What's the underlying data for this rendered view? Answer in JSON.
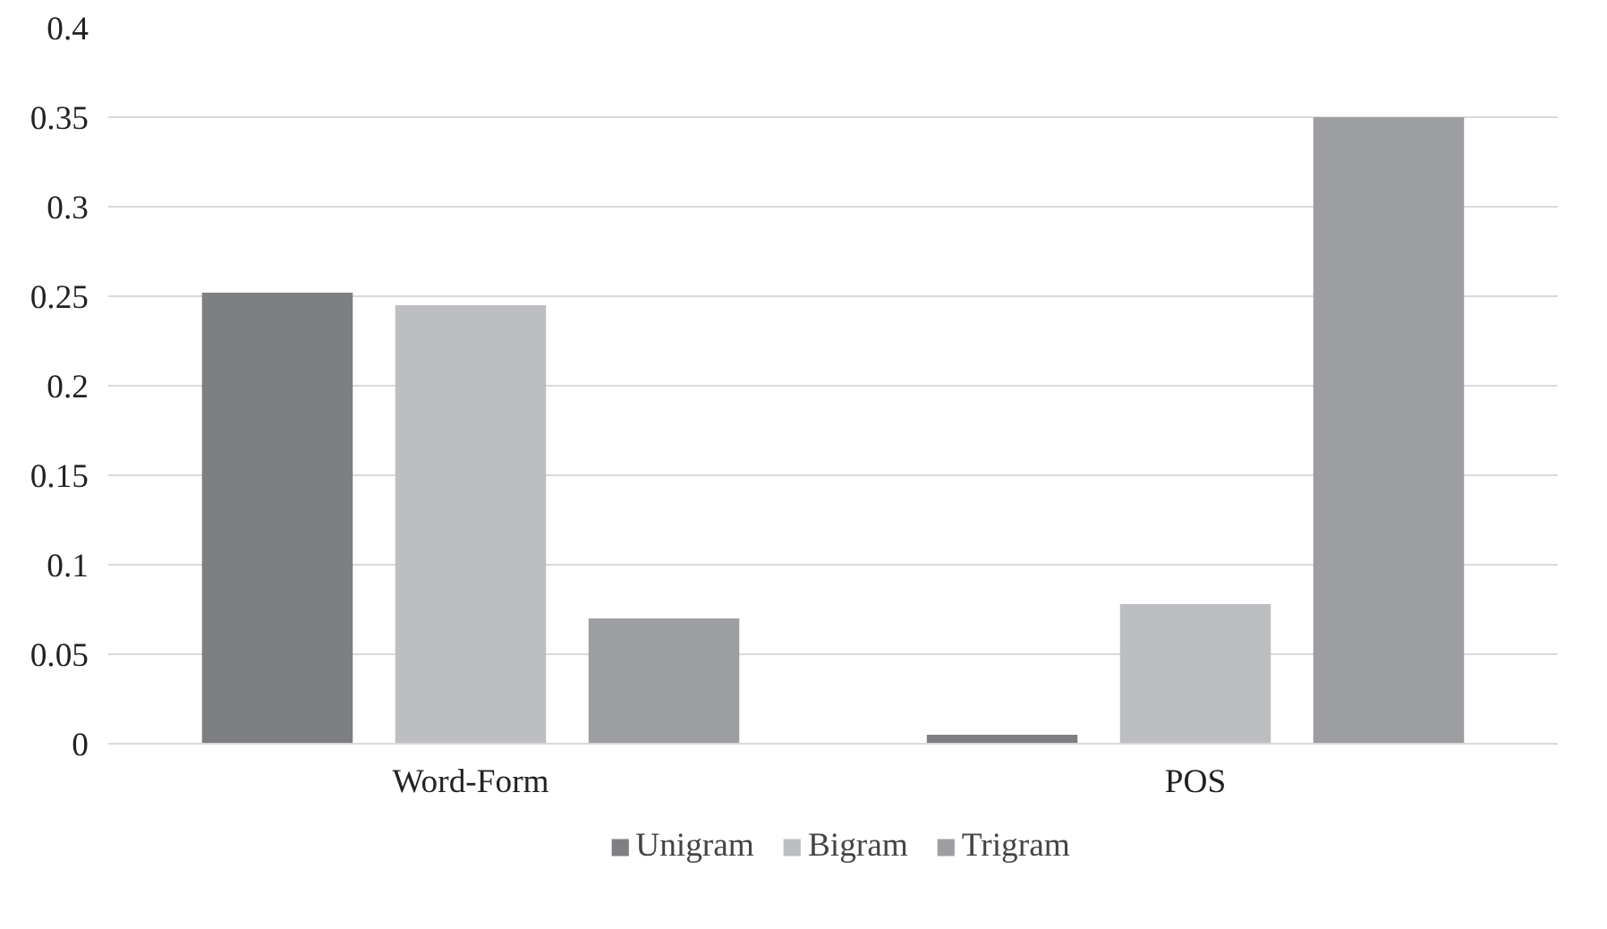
{
  "chart_data": {
    "type": "bar",
    "categories": [
      "Word-Form",
      "POS"
    ],
    "series": [
      {
        "name": "Unigram",
        "color": "#7e7f83",
        "values": [
          0.252,
          0.005
        ]
      },
      {
        "name": "Bigram",
        "color": "#bdbec1",
        "values": [
          0.245,
          0.078
        ]
      },
      {
        "name": "Trigram",
        "color": "#9d9ea1",
        "values": [
          0.07,
          0.35
        ]
      }
    ],
    "ylim": [
      0,
      0.4
    ],
    "yticks": [
      0,
      0.05,
      0.1,
      0.15,
      0.2,
      0.25,
      0.3,
      0.35,
      0.4
    ],
    "grid": "y",
    "legend": "bottom"
  }
}
